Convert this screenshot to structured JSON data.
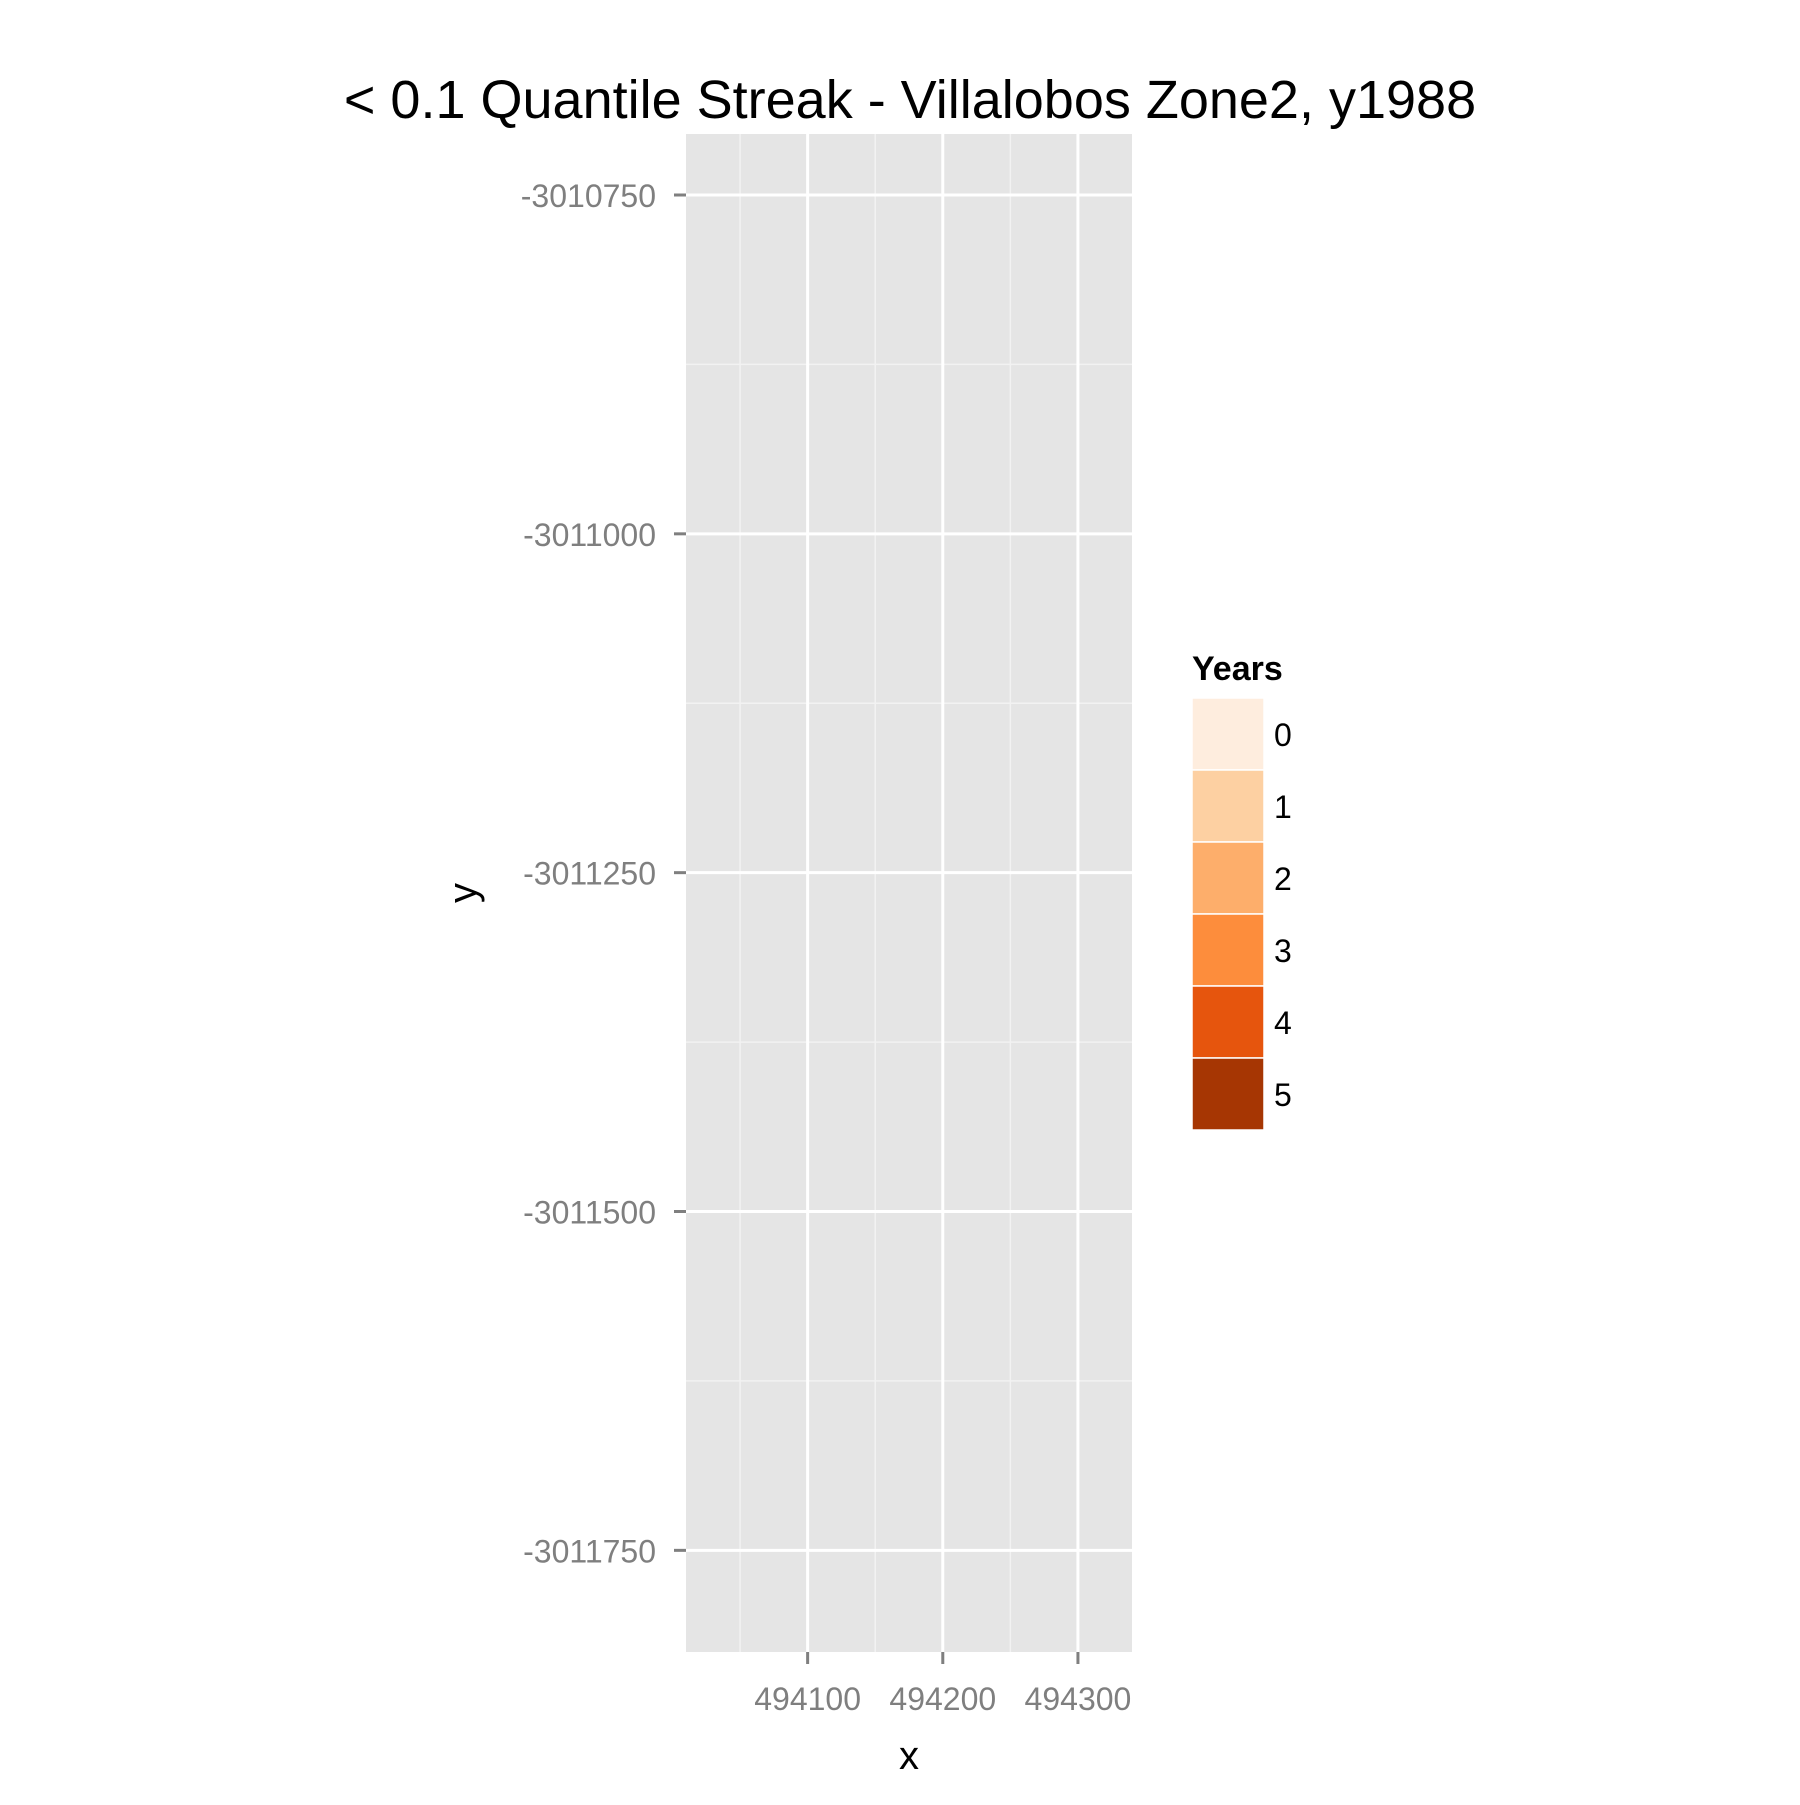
{
  "chart_data": {
    "type": "heatmap",
    "title": "< 0.1 Quantile Streak - Villalobos Zone2, y1988",
    "xlabel": "x",
    "ylabel": "y",
    "xlim": [
      494010,
      494340
    ],
    "ylim": [
      -3011825,
      -3010705
    ],
    "x_ticks": [
      494100,
      494200,
      494300
    ],
    "x_tick_labels": [
      "494100",
      "494200",
      "494300"
    ],
    "y_ticks": [
      -3010750,
      -3011000,
      -3011250,
      -3011500,
      -3011750
    ],
    "y_tick_labels": [
      "-3010750",
      "-3011000",
      "-3011250",
      "-3011500",
      "-3011750"
    ],
    "grid": true,
    "panel_background": "#E5E5E5",
    "cells": [],
    "legend": {
      "title": "Years",
      "placement": "right",
      "keys": [
        {
          "label": "0",
          "color": "#FEEDDE"
        },
        {
          "label": "1",
          "color": "#FDD0A2"
        },
        {
          "label": "2",
          "color": "#FDAE6B"
        },
        {
          "label": "3",
          "color": "#FD8D3C"
        },
        {
          "label": "4",
          "color": "#E6550D"
        },
        {
          "label": "5",
          "color": "#A63603"
        }
      ]
    }
  }
}
